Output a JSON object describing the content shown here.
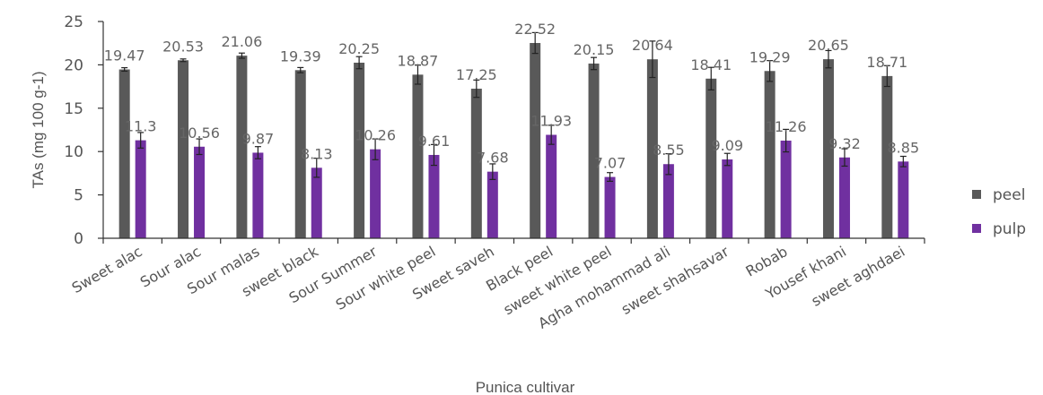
{
  "chart_data": {
    "type": "bar",
    "xlabel": "Punica cultivar",
    "ylabel": "TAs (mg 100 g-1)",
    "ylim": [
      0,
      25
    ],
    "yticks": [
      0,
      5,
      10,
      15,
      20,
      25
    ],
    "legend_position": "right",
    "grid": false,
    "categories": [
      "Sweet alac",
      "Sour alac",
      "Sour malas",
      "sweet black",
      "Sour Summer",
      "Sour white peel",
      "Sweet saveh",
      "Black peel",
      "sweet white peel",
      "Agha mohammad ali",
      "sweet shahsavar",
      "Robab",
      "Yousef khani",
      "sweet aghdaei"
    ],
    "series": [
      {
        "name": "peel",
        "color": "#595959",
        "values": [
          19.47,
          20.53,
          21.06,
          19.39,
          20.25,
          18.87,
          17.25,
          22.52,
          20.15,
          20.64,
          18.41,
          19.29,
          20.65,
          18.71
        ],
        "labels": [
          "19.47",
          "20.53",
          "21.06",
          "19.39",
          "20.25",
          "18.87",
          "17.25",
          "22.52",
          "20.15",
          "20.64",
          "18.41",
          "19.29",
          "20.65",
          "18.71"
        ],
        "errors": [
          0.2,
          0.15,
          0.3,
          0.3,
          0.7,
          1.1,
          1.0,
          1.2,
          0.7,
          2.1,
          1.3,
          1.2,
          1.0,
          1.2
        ]
      },
      {
        "name": "pulp",
        "color": "#7030a0",
        "values": [
          11.3,
          10.56,
          9.87,
          8.13,
          10.26,
          9.61,
          7.68,
          11.93,
          7.07,
          8.55,
          9.09,
          11.26,
          9.32,
          8.85
        ],
        "labels": [
          "11.3",
          "10.56",
          "9.87",
          "8.13",
          "10.26",
          "9.61",
          "7.68",
          "11.93",
          "7.07",
          "8.55",
          "9.09",
          "11.26",
          "9.32",
          "8.85"
        ],
        "errors": [
          0.9,
          0.9,
          0.7,
          1.1,
          1.2,
          1.2,
          0.9,
          1.1,
          0.5,
          1.2,
          0.7,
          1.3,
          1.0,
          0.6
        ]
      }
    ]
  }
}
